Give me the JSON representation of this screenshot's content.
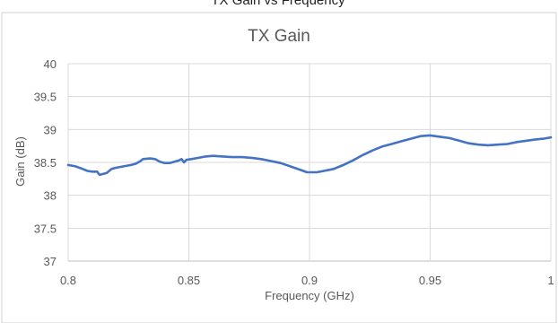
{
  "header_fragment": "TX Gain vs Frequency",
  "chart_data": {
    "type": "line",
    "title": "TX Gain",
    "xlabel": "Frequency (GHz)",
    "ylabel": "Gain (dB)",
    "xlim": [
      0.8,
      1.0
    ],
    "ylim": [
      37,
      40
    ],
    "x_ticks": [
      "0.8",
      "0.85",
      "0.9",
      "0.95",
      "1"
    ],
    "y_ticks": [
      "37",
      "37.5",
      "38",
      "38.5",
      "39",
      "39.5",
      "40"
    ],
    "grid": true,
    "legend": "none",
    "series": [
      {
        "color": "#4472C4",
        "points": [
          [
            0.8,
            38.46
          ],
          [
            0.803,
            38.44
          ],
          [
            0.806,
            38.4
          ],
          [
            0.808,
            38.37
          ],
          [
            0.81,
            38.36
          ],
          [
            0.812,
            38.36
          ],
          [
            0.813,
            38.31
          ],
          [
            0.815,
            38.33
          ],
          [
            0.816,
            38.34
          ],
          [
            0.818,
            38.4
          ],
          [
            0.82,
            38.42
          ],
          [
            0.823,
            38.44
          ],
          [
            0.826,
            38.46
          ],
          [
            0.828,
            38.48
          ],
          [
            0.83,
            38.52
          ],
          [
            0.831,
            38.55
          ],
          [
            0.834,
            38.56
          ],
          [
            0.836,
            38.55
          ],
          [
            0.838,
            38.51
          ],
          [
            0.84,
            38.49
          ],
          [
            0.842,
            38.49
          ],
          [
            0.844,
            38.51
          ],
          [
            0.846,
            38.53
          ],
          [
            0.847,
            38.55
          ],
          [
            0.848,
            38.5
          ],
          [
            0.849,
            38.54
          ],
          [
            0.851,
            38.55
          ],
          [
            0.854,
            38.57
          ],
          [
            0.857,
            38.59
          ],
          [
            0.86,
            38.6
          ],
          [
            0.864,
            38.59
          ],
          [
            0.868,
            38.58
          ],
          [
            0.872,
            38.58
          ],
          [
            0.876,
            38.57
          ],
          [
            0.88,
            38.55
          ],
          [
            0.884,
            38.52
          ],
          [
            0.888,
            38.49
          ],
          [
            0.892,
            38.44
          ],
          [
            0.896,
            38.39
          ],
          [
            0.899,
            38.35
          ],
          [
            0.903,
            38.35
          ],
          [
            0.906,
            38.37
          ],
          [
            0.91,
            38.4
          ],
          [
            0.914,
            38.46
          ],
          [
            0.918,
            38.53
          ],
          [
            0.922,
            38.61
          ],
          [
            0.926,
            38.68
          ],
          [
            0.93,
            38.74
          ],
          [
            0.934,
            38.78
          ],
          [
            0.938,
            38.82
          ],
          [
            0.942,
            38.86
          ],
          [
            0.946,
            38.9
          ],
          [
            0.95,
            38.91
          ],
          [
            0.954,
            38.89
          ],
          [
            0.958,
            38.87
          ],
          [
            0.962,
            38.83
          ],
          [
            0.966,
            38.79
          ],
          [
            0.97,
            38.77
          ],
          [
            0.974,
            38.76
          ],
          [
            0.978,
            38.77
          ],
          [
            0.982,
            38.78
          ],
          [
            0.986,
            38.81
          ],
          [
            0.99,
            38.83
          ],
          [
            0.994,
            38.85
          ],
          [
            0.997,
            38.86
          ],
          [
            1.0,
            38.88
          ]
        ]
      }
    ]
  }
}
